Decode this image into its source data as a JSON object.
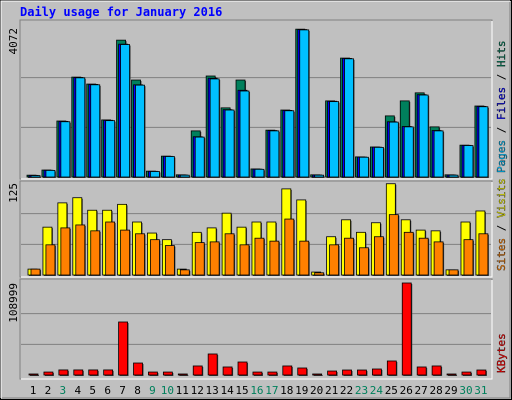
{
  "chart_data": [
    {
      "type": "bar",
      "title": "Daily usage for January 2016",
      "ylim": [
        0,
        4072
      ],
      "yticks": [
        4072
      ],
      "legend_separator": "/",
      "series": [
        {
          "name": "Hits",
          "color": "#00805c",
          "values": [
            50,
            190,
            1530,
            2730,
            2540,
            1560,
            3740,
            2650,
            160,
            570,
            60,
            1260,
            2760,
            1890,
            2650,
            220,
            1280,
            1830,
            4040,
            60,
            2080,
            3250,
            550,
            820,
            1670,
            2080,
            2300,
            1370,
            60,
            870,
            1940
          ]
        },
        {
          "name": "Files",
          "color": "#0000ff",
          "values": [
            45,
            185,
            1520,
            2720,
            2530,
            1550,
            3630,
            2520,
            155,
            565,
            55,
            1100,
            2700,
            1840,
            2370,
            215,
            1270,
            1820,
            4030,
            55,
            2070,
            3240,
            545,
            815,
            1510,
            1380,
            2250,
            1270,
            55,
            865,
            1930
          ]
        },
        {
          "name": "Pages",
          "color": "#00c0ff",
          "values": [
            40,
            180,
            1510,
            2710,
            2520,
            1540,
            3620,
            2510,
            150,
            560,
            50,
            1090,
            2680,
            1830,
            2350,
            210,
            1260,
            1810,
            4020,
            50,
            2060,
            3230,
            540,
            810,
            1500,
            1370,
            2240,
            1260,
            50,
            860,
            1920
          ]
        }
      ]
    },
    {
      "type": "bar",
      "ylim": [
        0,
        125
      ],
      "yticks": [
        125
      ],
      "legend_separator": "/",
      "series": [
        {
          "name": "Visits",
          "color": "#ffff00",
          "values": [
            8,
            65,
            98,
            105,
            88,
            88,
            96,
            72,
            57,
            48,
            8,
            58,
            64,
            84,
            65,
            72,
            72,
            117,
            102,
            4,
            52,
            75,
            58,
            71,
            124,
            75,
            61,
            60,
            7,
            72,
            87
          ]
        },
        {
          "name": "Sites",
          "color": "#ff8000",
          "values": [
            8,
            41,
            64,
            68,
            60,
            72,
            61,
            56,
            48,
            40,
            7,
            44,
            45,
            56,
            41,
            50,
            46,
            76,
            46,
            3,
            41,
            50,
            37,
            52,
            82,
            58,
            50,
            45,
            7,
            48,
            56
          ]
        }
      ]
    },
    {
      "type": "bar",
      "ylim": [
        0,
        108999
      ],
      "yticks": [
        108999
      ],
      "categories": [
        "1",
        "2",
        "3",
        "4",
        "5",
        "6",
        "7",
        "8",
        "9",
        "10",
        "11",
        "12",
        "13",
        "14",
        "15",
        "16",
        "17",
        "18",
        "19",
        "20",
        "21",
        "22",
        "23",
        "24",
        "25",
        "26",
        "27",
        "28",
        "29",
        "30",
        "31"
      ],
      "category_colors": [
        "#000000",
        "#000000",
        "#00805c",
        "#000000",
        "#000000",
        "#000000",
        "#000000",
        "#000000",
        "#00805c",
        "#00805c",
        "#000000",
        "#000000",
        "#000000",
        "#000000",
        "#000000",
        "#00805c",
        "#00805c",
        "#000000",
        "#000000",
        "#000000",
        "#000000",
        "#000000",
        "#00805c",
        "#00805c",
        "#000000",
        "#000000",
        "#000000",
        "#000000",
        "#000000",
        "#00805c",
        "#00805c"
      ],
      "series": [
        {
          "name": "KBytes",
          "color": "#ff0000",
          "values": [
            1200,
            3500,
            6000,
            6000,
            6000,
            6000,
            62800,
            14200,
            3500,
            3500,
            1200,
            10700,
            24900,
            9500,
            15400,
            3500,
            3500,
            10700,
            8300,
            1200,
            4700,
            5900,
            5900,
            7100,
            16600,
            108999,
            9500,
            10700,
            1200,
            3500,
            5900
          ]
        }
      ]
    }
  ]
}
